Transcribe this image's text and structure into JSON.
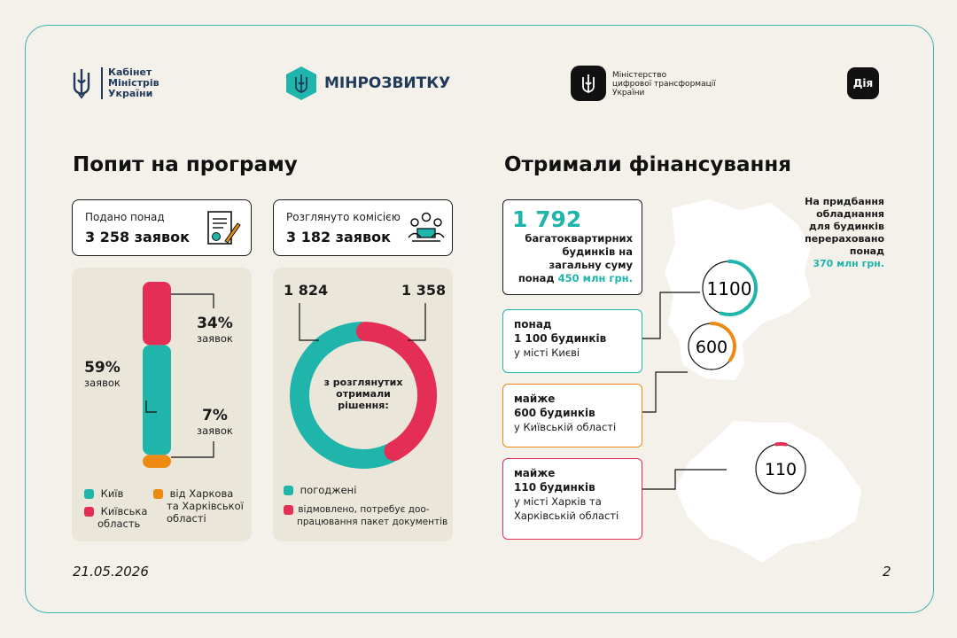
{
  "header": {
    "cabinet_line1": "Кабінет",
    "cabinet_line2": "Міністрів",
    "cabinet_line3": "України",
    "minrozvytku": "МІНРОЗВИТКУ",
    "ministry_line1": "Міністерство",
    "ministry_line2": "цифрової трансформації",
    "ministry_line3": "України",
    "diia": "Дія"
  },
  "demand": {
    "title": "Попит на програму",
    "submitted_label": "Подано понад",
    "submitted_value": "3 258 заявок",
    "reviewed_label": "Розглянуто комісією",
    "reviewed_value": "3 182 заявок"
  },
  "regions_chart": {
    "pct_kyiv": "59%",
    "pct_kyiv_sub": "заявок",
    "pct_oblast": "34%",
    "pct_oblast_sub": "заявок",
    "pct_kharkiv": "7%",
    "pct_kharkiv_sub": "заявок",
    "legend_kyiv": "Київ",
    "legend_oblast_1": "Київська",
    "legend_oblast_2": "область",
    "legend_kharkiv_1": "від Харкова",
    "legend_kharkiv_2": "та Харківської",
    "legend_kharkiv_3": "області"
  },
  "decision_chart": {
    "approved_value": "1 824",
    "rejected_value": "1 358",
    "center_line1": "з розглянутих",
    "center_line2": "отримали",
    "center_line3": "рішення:",
    "legend_approved": "погоджені",
    "legend_rejected_1": "відмовлено, потребує доо-",
    "legend_rejected_2": "працювання пакет документів"
  },
  "chart_data": [
    {
      "type": "bar",
      "categories": [
        "Київ",
        "Київська область",
        "від Харкова та Харківської області"
      ],
      "values": [
        59,
        34,
        7
      ],
      "unit": "%"
    },
    {
      "type": "pie",
      "categories": [
        "погоджені",
        "відмовлено, потребує доопрацювання пакет документів"
      ],
      "values": [
        1824,
        1358
      ]
    }
  ],
  "funding": {
    "title": "Отримали фінансування",
    "total_number": "1 792",
    "total_line1": "багатоквартирних",
    "total_line2": "будинків на",
    "total_line3": "загальну суму",
    "total_line4_prefix": "понад ",
    "total_line4_amount": "450 млн грн.",
    "kyiv_line1": "понад",
    "kyiv_line2": "1 100 будинків",
    "kyiv_line3": "у місті Києві",
    "oblast_line1": "майже",
    "oblast_line2": "600 будинків",
    "oblast_line3": "у Київській області",
    "kharkiv_line1": "майже",
    "kharkiv_line2": "110 будинків",
    "kharkiv_line3": "у місті Харків та",
    "kharkiv_line4": "Харківській області",
    "equipment_line1": "На придбання",
    "equipment_line2": "обладнання",
    "equipment_line3": "для будинків",
    "equipment_line4": "перераховано",
    "equipment_line5": "понад",
    "equipment_amount": "370 млн грн.",
    "circle_kyiv": "1100",
    "circle_oblast": "600",
    "circle_kharkiv": "110"
  },
  "footer": {
    "date": "21.05.2026",
    "page": "2"
  },
  "colors": {
    "teal": "#1fb5ab",
    "red": "#e42e56",
    "orange": "#ec8a12",
    "border": "#3bb7ae"
  }
}
